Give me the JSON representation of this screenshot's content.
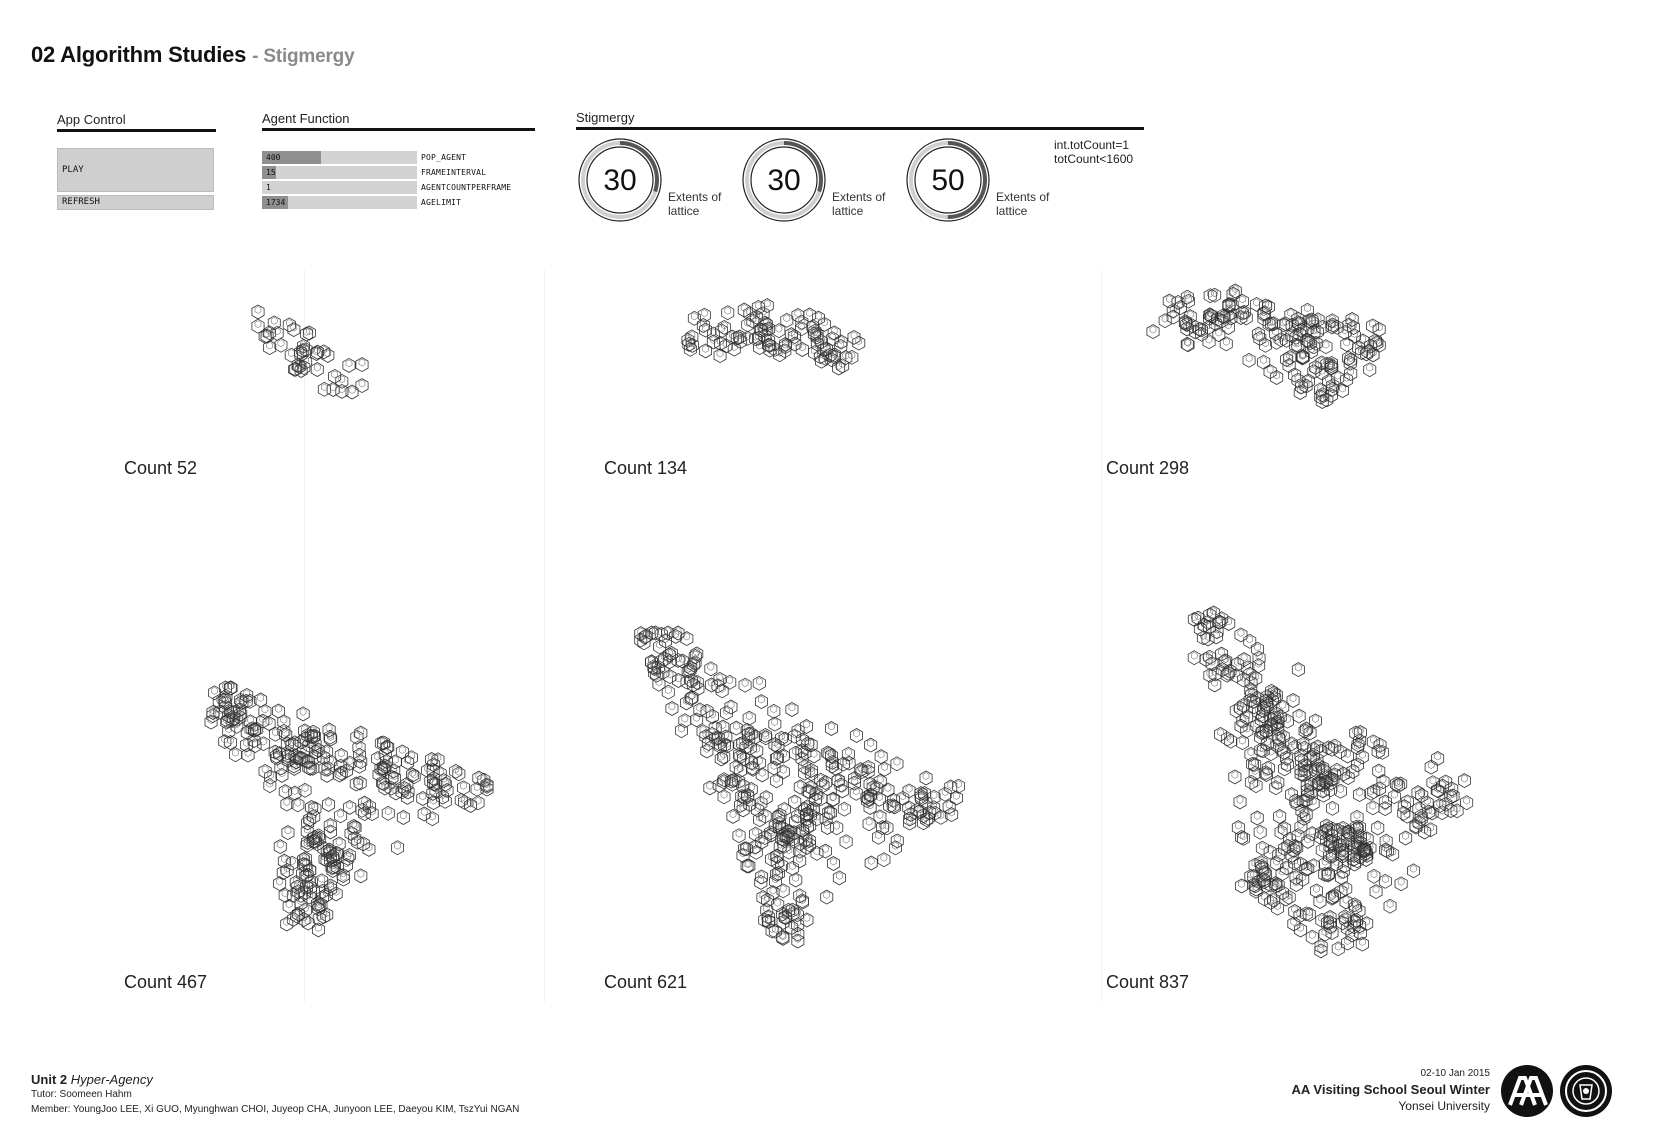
{
  "header": {
    "title": "02 Algorithm Studies",
    "subtitle": "- Stigmergy"
  },
  "app_control": {
    "label": "App Control",
    "play_label": "PLAY",
    "refresh_label": "REFRESH"
  },
  "agent_function": {
    "label": "Agent  Function",
    "sliders": [
      {
        "value": "400",
        "name": "POP_AGENT",
        "fill": 0.38
      },
      {
        "value": "15",
        "name": "FRAMEINTERVAL",
        "fill": 0.09
      },
      {
        "value": "1",
        "name": "AGENTCOUNTPERFRAME",
        "fill": 0.0
      },
      {
        "value": "1734",
        "name": "AGELIMIT",
        "fill": 0.17
      }
    ]
  },
  "stigmergy": {
    "label": "Stigmergy",
    "dials": [
      {
        "value": "30",
        "line1": "Extents of",
        "line2": "lattice",
        "level": 0.3
      },
      {
        "value": "30",
        "line1": "Extents of",
        "line2": "lattice",
        "level": 0.3
      },
      {
        "value": "50",
        "line1": "Extents of",
        "line2": "lattice",
        "level": 0.5
      }
    ],
    "code_line1": "int.totCount=1",
    "code_line2": "totCount<1600"
  },
  "counts": [
    "Count 52",
    "Count 134",
    "Count 298",
    "Count 467",
    "Count 621",
    "Count 837"
  ],
  "footer": {
    "unit_bold": "Unit 2",
    "unit_italic": "Hyper-Agency",
    "tutor": "Tutor: Soomeen Hahm",
    "members": "Member: YoungJoo LEE, Xi GUO, Myunghwan CHOI, Juyeop CHA, Junyoon LEE, Daeyou KIM, TszYui NGAN",
    "date": "02-10 Jan 2015",
    "school": "AA Visiting School Seoul Winter",
    "university": "Yonsei University"
  }
}
